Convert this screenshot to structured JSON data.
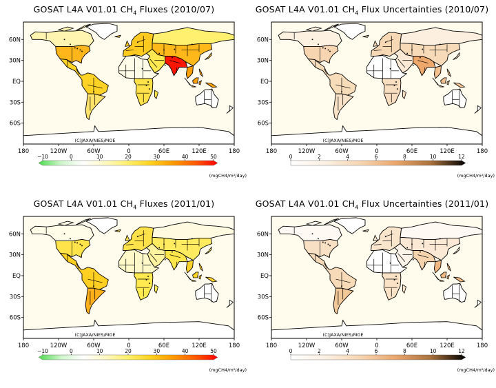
{
  "colors": {
    "ocean": "#fffcee",
    "land_border": "#000000",
    "flux_scale": [
      "#4ddc4d",
      "#cdf5c9",
      "#ffffff",
      "#fff8c2",
      "#fff06a",
      "#ffd21e",
      "#ff9a00",
      "#ff5a00",
      "#ff0000"
    ],
    "unc_scale": [
      "#ffffff",
      "#fcf0e2",
      "#f6d5b2",
      "#eaa66c",
      "#a9713c",
      "#000000"
    ]
  },
  "panels": [
    {
      "id": "flux-2010-07",
      "title_pre": "GOSAT L4A V01.01 CH",
      "title_sub": "4",
      "title_post": " Fluxes (2010/07)",
      "credit": "(C)JAXA/NIES/MOE",
      "units": "(mgCH4/m²/day)",
      "colorbar": {
        "min": -10,
        "max": 50,
        "ticks": [
          "−10",
          "0",
          "10",
          "20",
          "30",
          "40",
          "50"
        ],
        "scale": "flux"
      },
      "x_ticks": [
        "180",
        "120W",
        "60W",
        "0",
        "60E",
        "120E",
        "180"
      ],
      "y_ticks": [
        "60N",
        "30N",
        "EQ",
        "30S",
        "60S"
      ],
      "regions": {
        "boreal_na": "#fff4b0",
        "temperate_na": "#ffb61a",
        "tropical_sa": "#ffd226",
        "temperate_sa": "#ffe36a",
        "europe": "#ffca20",
        "boreal_eurasia": "#fff070",
        "temperate_eurasia": "#ffb81a",
        "tropical_asia": "#ff1500",
        "northern_africa": "#fffde8",
        "southern_africa": "#ffe14a",
        "australia": "#ffffff",
        "greenland": "#ffffff",
        "se_asia": "#ffa000",
        "middle_east": "#ffe850"
      }
    },
    {
      "id": "unc-2010-07",
      "title_pre": "GOSAT L4A V01.01 CH",
      "title_sub": "4",
      "title_post": " Flux Uncertainties (2010/07)",
      "credit": "(C)JAXA/NIES/MOE",
      "units": "(mgCH4/m²/day)",
      "colorbar": {
        "min": 0,
        "max": 12,
        "ticks": [
          "0",
          "2",
          "4",
          "6",
          "8",
          "10",
          "12"
        ],
        "scale": "unc"
      },
      "x_ticks": [
        "180",
        "120W",
        "60W",
        "0",
        "60E",
        "120E",
        "180"
      ],
      "y_ticks": [
        "60N",
        "30N",
        "EQ",
        "30S",
        "60S"
      ],
      "regions": {
        "boreal_na": "#fdf1e2",
        "temperate_na": "#f6d5b0",
        "tropical_sa": "#f7dcba",
        "temperate_sa": "#f9e3c8",
        "europe": "#f6d8b4",
        "boreal_eurasia": "#fcefdf",
        "temperate_eurasia": "#f7dbb9",
        "tropical_asia": "#eea86b",
        "northern_africa": "#ffffff",
        "southern_africa": "#f8dec0",
        "australia": "#ffffff",
        "greenland": "#ffffff",
        "se_asia": "#f2c08e",
        "middle_east": "#fbe9d6"
      }
    },
    {
      "id": "flux-2011-01",
      "title_pre": "GOSAT L4A V01.01 CH",
      "title_sub": "4",
      "title_post": " Fluxes (2011/01)",
      "credit": "(C)JAXA/NIES/MOE",
      "units": "(mgCH4/m²/day)",
      "colorbar": {
        "min": -10,
        "max": 50,
        "ticks": [
          "−10",
          "0",
          "10",
          "20",
          "30",
          "40",
          "50"
        ],
        "scale": "flux"
      },
      "x_ticks": [
        "180",
        "120W",
        "60W",
        "0",
        "60E",
        "120E",
        "180"
      ],
      "y_ticks": [
        "60N",
        "30N",
        "EQ",
        "30S",
        "60S"
      ],
      "regions": {
        "boreal_na": "#fffde8",
        "temperate_na": "#ffe34a",
        "tropical_sa": "#ffcf22",
        "temperate_sa": "#ffb01a",
        "europe": "#ffe24a",
        "boreal_eurasia": "#fffae0",
        "temperate_eurasia": "#ffeb60",
        "tropical_asia": "#ffe64a",
        "northern_africa": "#fff8c8",
        "southern_africa": "#ffeb50",
        "australia": "#ffffff",
        "greenland": "#ffffff",
        "se_asia": "#ffd22a",
        "middle_east": "#fff3a0"
      }
    },
    {
      "id": "unc-2011-01",
      "title_pre": "GOSAT L4A V01.01 CH",
      "title_sub": "4",
      "title_post": " Flux Uncertainties (2011/01)",
      "credit": "(C)JAXA/NIES/MOE",
      "units": "(mgCH4/m²/day)",
      "colorbar": {
        "min": 0,
        "max": 12,
        "ticks": [
          "0",
          "2",
          "4",
          "6",
          "8",
          "10",
          "12"
        ],
        "scale": "unc"
      },
      "x_ticks": [
        "180",
        "120W",
        "60W",
        "0",
        "60E",
        "120E",
        "180"
      ],
      "y_ticks": [
        "60N",
        "30N",
        "EQ",
        "30S",
        "60S"
      ],
      "regions": {
        "boreal_na": "#fefaf3",
        "temperate_na": "#f8e0c4",
        "tropical_sa": "#f7dab8",
        "temperate_sa": "#f3c898",
        "europe": "#f9e4cc",
        "boreal_eurasia": "#fefaf3",
        "temperate_eurasia": "#fbe9d6",
        "tropical_asia": "#f6d4ae",
        "northern_africa": "#ffffff",
        "southern_africa": "#f9e2c6",
        "australia": "#ffffff",
        "greenland": "#ffffff",
        "se_asia": "#f0b880",
        "middle_east": "#fdf3e8"
      }
    }
  ]
}
